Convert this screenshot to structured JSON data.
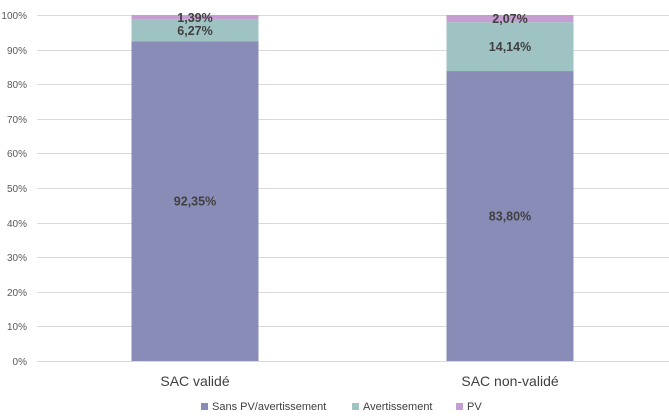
{
  "chart_data": {
    "type": "bar",
    "stacked": true,
    "percent": true,
    "categories": [
      "SAC validé",
      "SAC non-validé"
    ],
    "series": [
      {
        "name": "Sans PV/avertissement",
        "values": [
          92.35,
          83.8
        ],
        "labels": [
          "92,35%",
          "83,80%"
        ],
        "color": "#8a8cb8"
      },
      {
        "name": "Avertissement",
        "values": [
          6.27,
          14.14
        ],
        "labels": [
          "6,27%",
          "14,14%"
        ],
        "color": "#9fc3c3"
      },
      {
        "name": "PV",
        "values": [
          1.39,
          2.07
        ],
        "labels": [
          "1,39%",
          "2,07%"
        ],
        "color": "#c79ed1"
      }
    ],
    "y_ticks": [
      "0%",
      "10%",
      "20%",
      "30%",
      "40%",
      "50%",
      "60%",
      "70%",
      "80%",
      "90%",
      "100%"
    ],
    "ylim": [
      0,
      100
    ],
    "grid": true,
    "legend_position": "bottom"
  }
}
